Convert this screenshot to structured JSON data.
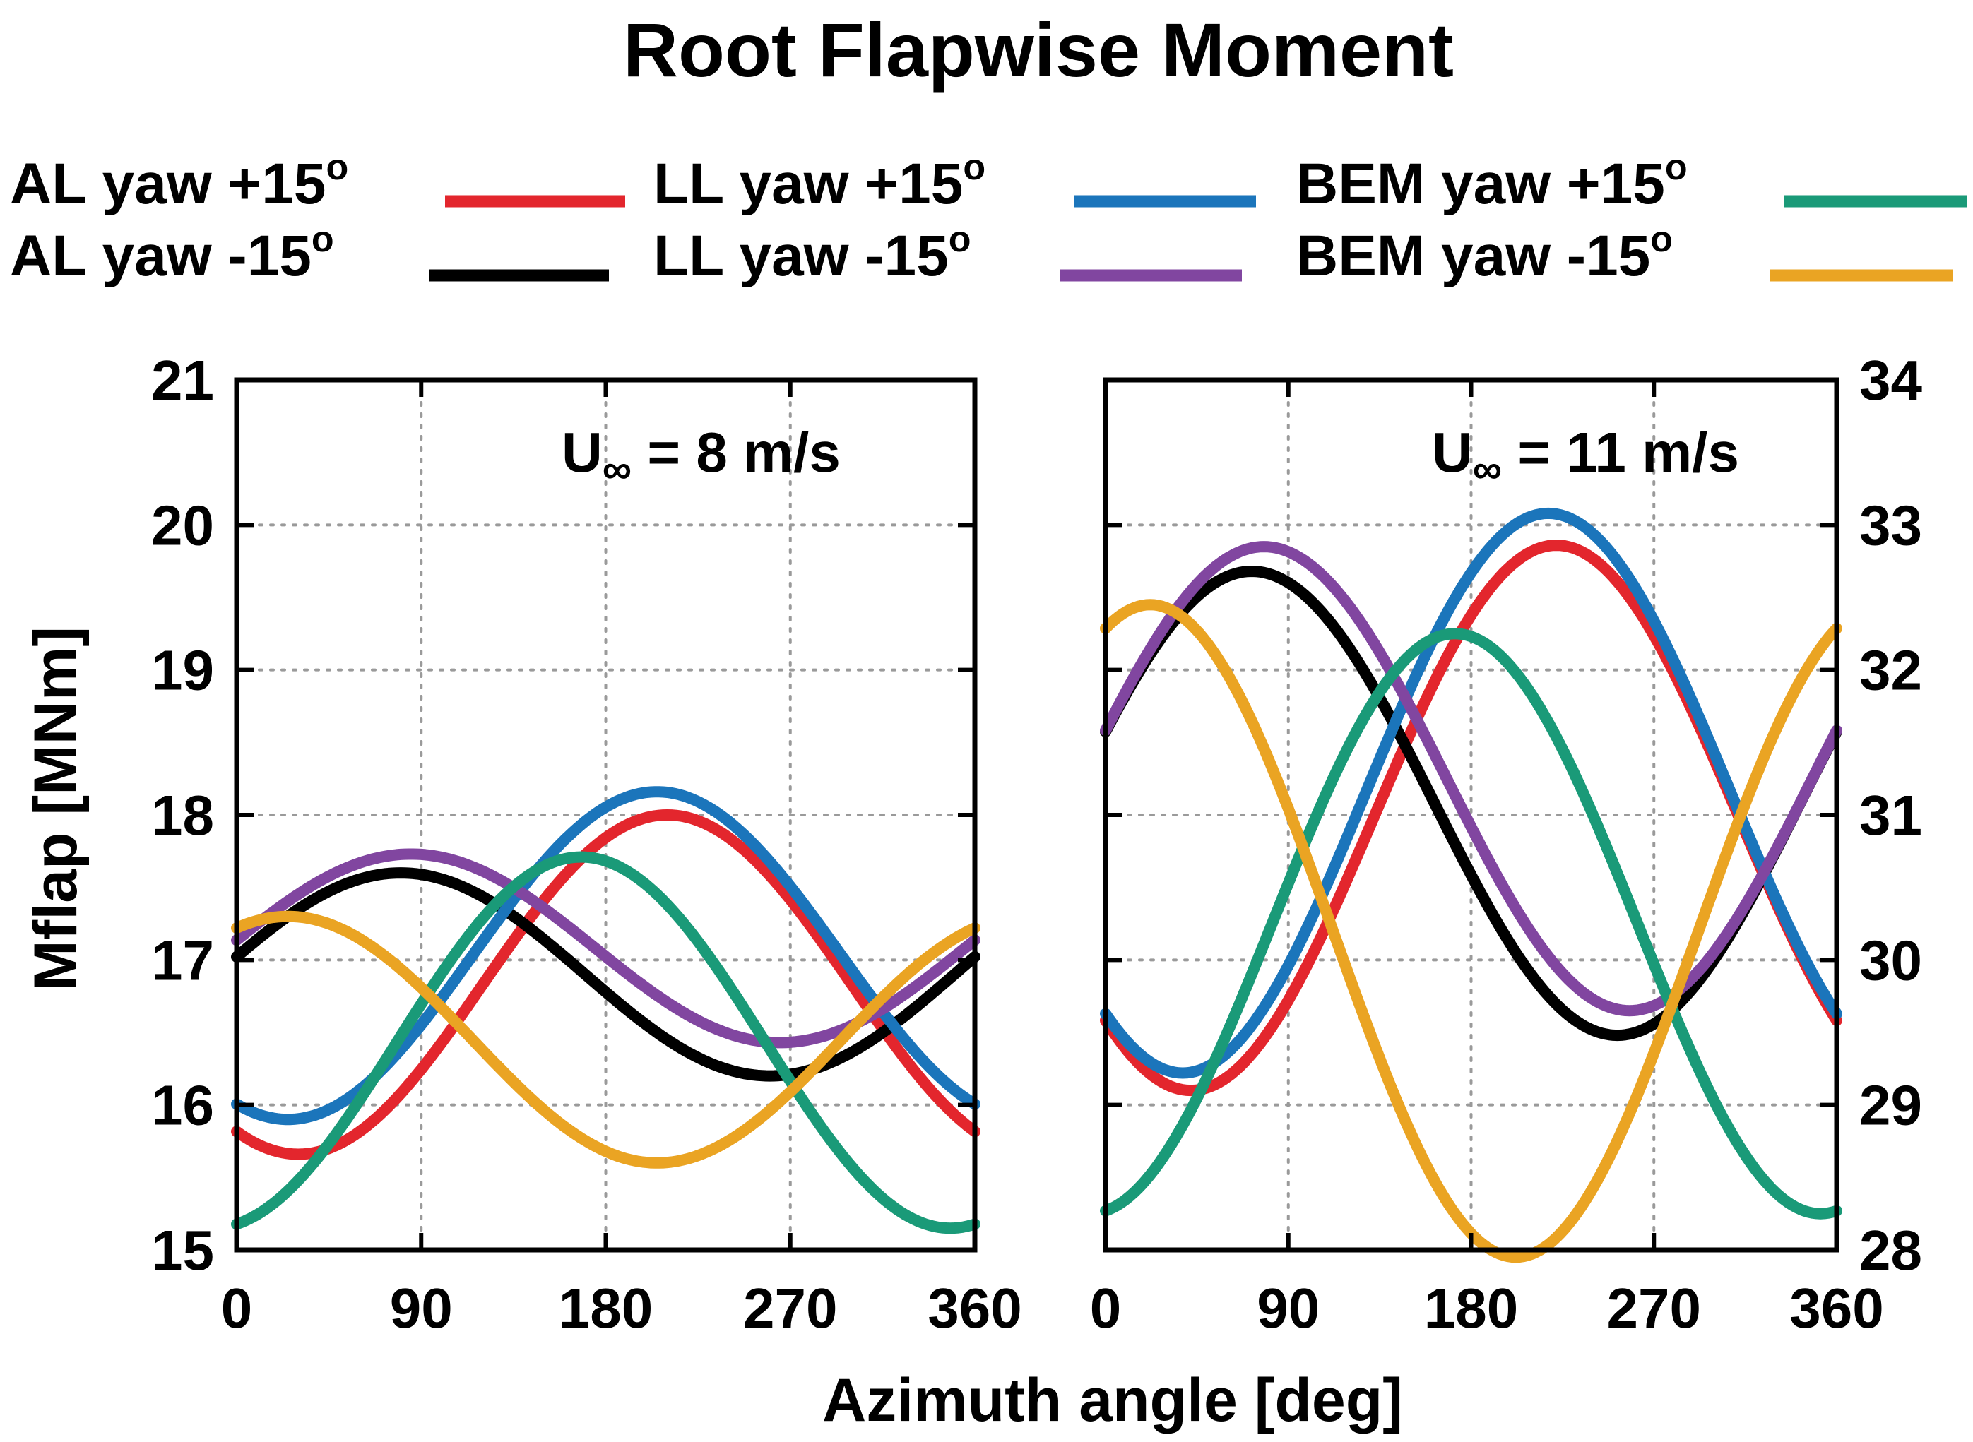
{
  "figure": {
    "title": "Root Flapwise Moment",
    "xlabel": "Azimuth angle [deg]",
    "ylabel": "Mflap [MNm]",
    "legend": [
      {
        "label": "AL yaw +15",
        "sup": "o",
        "color": "#e3262d"
      },
      {
        "label": "AL yaw -15",
        "sup": "o",
        "color": "#000000"
      },
      {
        "label": "LL yaw +15",
        "sup": "o",
        "color": "#1b75bb"
      },
      {
        "label": "LL yaw -15",
        "sup": "o",
        "color": "#8146a0"
      },
      {
        "label": "BEM yaw +15",
        "sup": "o",
        "color": "#1a9a78"
      },
      {
        "label": "BEM yaw -15",
        "sup": "o",
        "color": "#eaa423"
      }
    ]
  },
  "chart_data": [
    {
      "type": "line",
      "annotation": {
        "prefix": "U",
        "sub": "∞",
        "suffix": " = 8 m/s"
      },
      "xlim": [
        0,
        360
      ],
      "ylim": [
        15,
        21
      ],
      "xticks": [
        "0",
        "90",
        "180",
        "270",
        "360"
      ],
      "yticks": [
        "15",
        "16",
        "17",
        "18",
        "19",
        "20",
        "21"
      ],
      "y_axis_side": "left",
      "grid": true,
      "series": [
        {
          "name": "AL yaw +15",
          "color": "#e3262d",
          "mean": 16.83,
          "amp": 1.17,
          "peak": 210
        },
        {
          "name": "AL yaw -15",
          "color": "#000000",
          "mean": 16.9,
          "amp": 0.7,
          "peak": 80
        },
        {
          "name": "LL yaw +15",
          "color": "#1b75bb",
          "mean": 17.03,
          "amp": 1.13,
          "peak": 205
        },
        {
          "name": "LL yaw -15",
          "color": "#8146a0",
          "mean": 17.08,
          "amp": 0.65,
          "peak": 85
        },
        {
          "name": "BEM yaw +15",
          "color": "#1a9a78",
          "mean": 16.43,
          "amp": 1.28,
          "peak": 168
        },
        {
          "name": "BEM yaw -15",
          "color": "#eaa423",
          "mean": 16.45,
          "amp": 0.85,
          "peak": 25
        }
      ]
    },
    {
      "type": "line",
      "annotation": {
        "prefix": "U",
        "sub": "∞",
        "suffix": " = 11 m/s"
      },
      "xlim": [
        0,
        360
      ],
      "ylim": [
        28,
        34
      ],
      "xticks": [
        "0",
        "90",
        "180",
        "270",
        "360"
      ],
      "yticks": [
        "28",
        "29",
        "30",
        "31",
        "32",
        "33",
        "34"
      ],
      "y_axis_side": "right",
      "grid": true,
      "series": [
        {
          "name": "AL yaw +15",
          "color": "#e3262d",
          "mean": 30.98,
          "amp": 1.88,
          "peak": 222
        },
        {
          "name": "AL yaw -15",
          "color": "#000000",
          "mean": 31.08,
          "amp": 1.6,
          "peak": 72
        },
        {
          "name": "LL yaw +15",
          "color": "#1b75bb",
          "mean": 31.15,
          "amp": 1.93,
          "peak": 218
        },
        {
          "name": "LL yaw -15",
          "color": "#8146a0",
          "mean": 31.25,
          "amp": 1.6,
          "peak": 78
        },
        {
          "name": "BEM yaw +15",
          "color": "#1a9a78",
          "mean": 30.25,
          "amp": 2.0,
          "peak": 172
        },
        {
          "name": "BEM yaw -15",
          "color": "#eaa423",
          "mean": 30.2,
          "amp": 2.25,
          "peak": 22
        }
      ]
    }
  ]
}
